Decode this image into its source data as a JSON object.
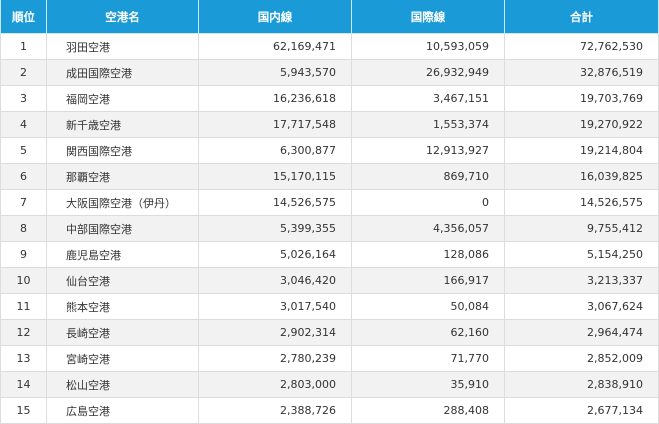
{
  "table": {
    "headers": [
      "順位",
      "空港名",
      "国内線",
      "国際線",
      "合計"
    ],
    "rows": [
      [
        "1",
        "羽田空港",
        "62,169,471",
        "10,593,059",
        "72,762,530"
      ],
      [
        "2",
        "成田国際空港",
        "5,943,570",
        "26,932,949",
        "32,876,519"
      ],
      [
        "3",
        "福岡空港",
        "16,236,618",
        "3,467,151",
        "19,703,769"
      ],
      [
        "4",
        "新千歳空港",
        "17,717,548",
        "1,553,374",
        "19,270,922"
      ],
      [
        "5",
        "関西国際空港",
        "6,300,877",
        "12,913,927",
        "19,214,804"
      ],
      [
        "6",
        "那覇空港",
        "15,170,115",
        "869,710",
        "16,039,825"
      ],
      [
        "7",
        "大阪国際空港（伊丹）",
        "14,526,575",
        "0",
        "14,526,575"
      ],
      [
        "8",
        "中部国際空港",
        "5,399,355",
        "4,356,057",
        "9,755,412"
      ],
      [
        "9",
        "鹿児島空港",
        "5,026,164",
        "128,086",
        "5,154,250"
      ],
      [
        "10",
        "仙台空港",
        "3,046,420",
        "166,917",
        "3,213,337"
      ],
      [
        "11",
        "熊本空港",
        "3,017,540",
        "50,084",
        "3,067,624"
      ],
      [
        "12",
        "長崎空港",
        "2,902,314",
        "62,160",
        "2,964,474"
      ],
      [
        "13",
        "宮崎空港",
        "2,780,239",
        "71,770",
        "2,852,009"
      ],
      [
        "14",
        "松山空港",
        "2,803,000",
        "35,910",
        "2,838,910"
      ],
      [
        "15",
        "広島空港",
        "2,388,726",
        "288,408",
        "2,677,134"
      ]
    ]
  },
  "colors": {
    "header_bg": "#1a9ad6",
    "header_text": "#ffffff",
    "row_alt_bg": "#f2f2f2",
    "border": "#dcdcdc"
  }
}
